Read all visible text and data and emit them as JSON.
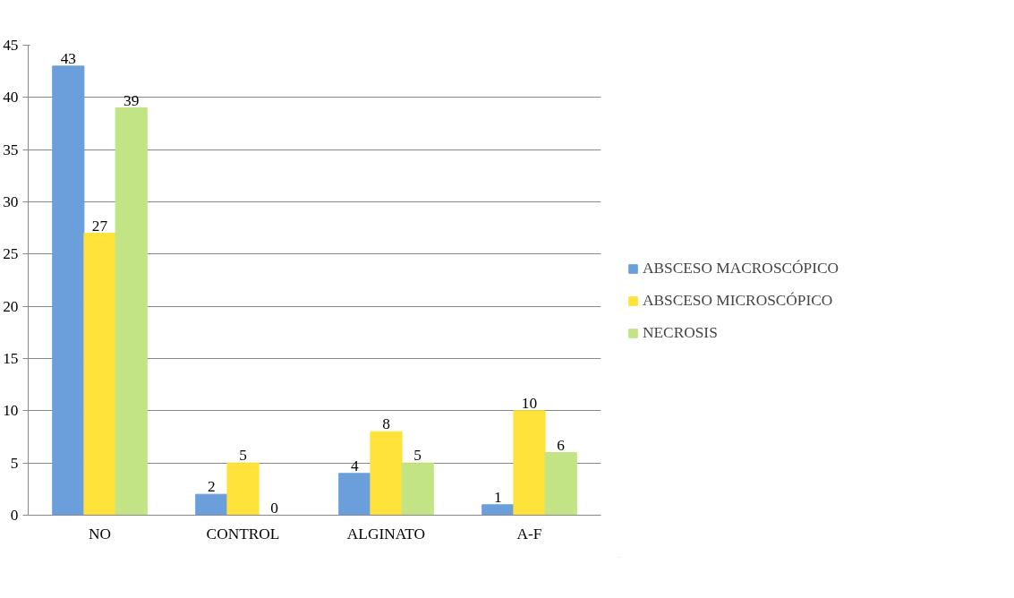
{
  "chart_data": {
    "type": "bar",
    "categories": [
      "NO",
      "CONTROL",
      "ALGINATO",
      "A-F"
    ],
    "series": [
      {
        "name": "ABSCESO MACROSCÓPICO",
        "color": "#6a9fdb",
        "values": [
          43,
          2,
          4,
          1
        ]
      },
      {
        "name": "ABSCESO MICROSCÓPICO",
        "color": "#ffe23a",
        "values": [
          27,
          5,
          8,
          10
        ]
      },
      {
        "name": "NECROSIS",
        "color": "#c2e485",
        "values": [
          39,
          0,
          5,
          6
        ]
      }
    ],
    "ylim": [
      0,
      45
    ],
    "yticks": [
      0,
      5,
      10,
      15,
      20,
      25,
      30,
      35,
      40,
      45
    ],
    "grid": "y",
    "legend": "right",
    "data_labels": true
  }
}
